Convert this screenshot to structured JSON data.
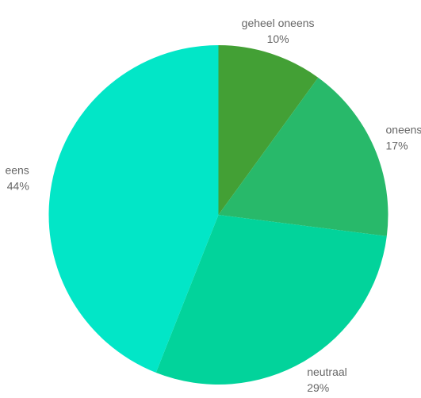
{
  "chart_data": {
    "type": "pie",
    "slices": [
      {
        "label": "geheel oneens",
        "value": 10,
        "percent_label": "10%",
        "color": "#43a035"
      },
      {
        "label": "oneens",
        "value": 17,
        "percent_label": "17%",
        "color": "#28b96a"
      },
      {
        "label": "neutraal",
        "value": 29,
        "percent_label": "29%",
        "color": "#02d39b"
      },
      {
        "label": "eens",
        "value": 44,
        "percent_label": "44%",
        "color": "#02e6c7"
      }
    ],
    "start_angle": "top",
    "direction": "clockwise",
    "legend": "none"
  }
}
